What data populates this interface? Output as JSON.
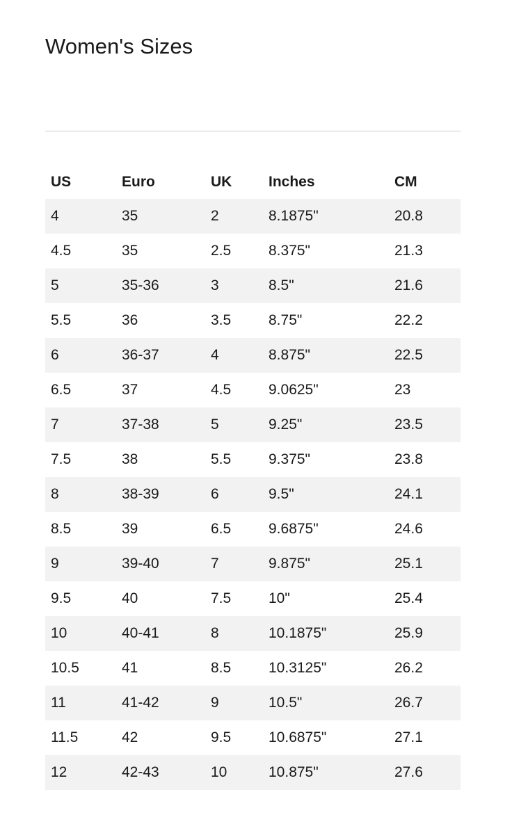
{
  "page_title": "Women's Sizes",
  "size_table": {
    "columns": [
      "US",
      "Euro",
      "UK",
      "Inches",
      "CM"
    ],
    "rows": [
      [
        "4",
        "35",
        "2",
        "8.1875\"",
        "20.8"
      ],
      [
        "4.5",
        "35",
        "2.5",
        "8.375\"",
        "21.3"
      ],
      [
        "5",
        "35-36",
        "3",
        "8.5\"",
        "21.6"
      ],
      [
        "5.5",
        "36",
        "3.5",
        "8.75\"",
        "22.2"
      ],
      [
        "6",
        "36-37",
        "4",
        "8.875\"",
        "22.5"
      ],
      [
        "6.5",
        "37",
        "4.5",
        "9.0625\"",
        "23"
      ],
      [
        "7",
        "37-38",
        "5",
        "9.25\"",
        "23.5"
      ],
      [
        "7.5",
        "38",
        "5.5",
        "9.375\"",
        "23.8"
      ],
      [
        "8",
        "38-39",
        "6",
        "9.5\"",
        "24.1"
      ],
      [
        "8.5",
        "39",
        "6.5",
        "9.6875\"",
        "24.6"
      ],
      [
        "9",
        "39-40",
        "7",
        "9.875\"",
        "25.1"
      ],
      [
        "9.5",
        "40",
        "7.5",
        "10\"",
        "25.4"
      ],
      [
        "10",
        "40-41",
        "8",
        "10.1875\"",
        "25.9"
      ],
      [
        "10.5",
        "41",
        "8.5",
        "10.3125\"",
        "26.2"
      ],
      [
        "11",
        "41-42",
        "9",
        "10.5\"",
        "26.7"
      ],
      [
        "11.5",
        "42",
        "9.5",
        "10.6875\"",
        "27.1"
      ],
      [
        "12",
        "42-43",
        "10",
        "10.875\"",
        "27.6"
      ]
    ]
  },
  "colors": {
    "background": "#ffffff",
    "text": "#1a1a1a",
    "row_stripe": "#f2f2f2",
    "divider": "#cbcbcb"
  }
}
